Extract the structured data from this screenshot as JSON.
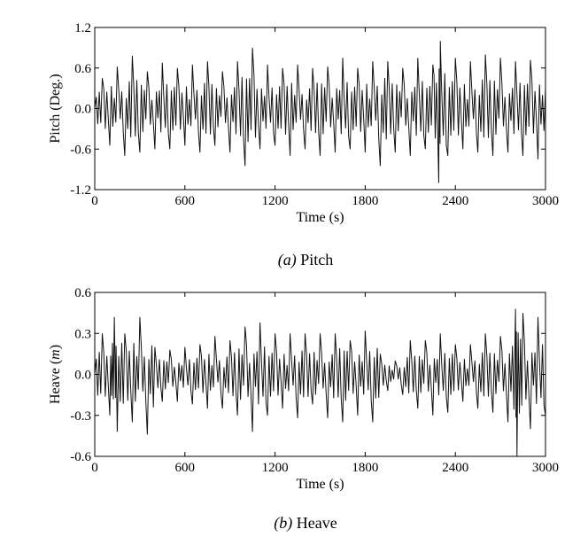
{
  "chart_data": [
    {
      "type": "line",
      "caption_prefix": "(a)",
      "caption_text": "Pitch",
      "xlabel": "Time (s)",
      "ylabel": "Pitch (Deg.)",
      "xlim": [
        0,
        3000
      ],
      "ylim": [
        -1.2,
        1.2
      ],
      "xticks": [
        0,
        600,
        1200,
        1800,
        2400,
        3000
      ],
      "xtick_labels": [
        "0",
        "600",
        "1200",
        "1800",
        "2400",
        "3000"
      ],
      "yticks": [
        1.2,
        0.6,
        0.0,
        -0.6,
        -1.2
      ],
      "ytick_labels": [
        "1.2",
        "0.6",
        "0.0",
        "-0.6",
        "-1.2"
      ],
      "grid": false,
      "series": [
        {
          "x": [
            0,
            50,
            100,
            150,
            200,
            250,
            300,
            350,
            400,
            450,
            500,
            550,
            600,
            650,
            700,
            750,
            800,
            850,
            900,
            950,
            1000,
            1050,
            1100,
            1150,
            1200,
            1250,
            1300,
            1350,
            1400,
            1450,
            1500,
            1550,
            1600,
            1650,
            1700,
            1750,
            1800,
            1850,
            1900,
            1950,
            2000,
            2050,
            2100,
            2150,
            2200,
            2250,
            2290,
            2300,
            2350,
            2400,
            2450,
            2500,
            2550,
            2600,
            2650,
            2700,
            2750,
            2800,
            2850,
            2900,
            2950,
            3000
          ],
          "values": [
            0.0,
            0.45,
            -0.55,
            0.62,
            -0.7,
            0.78,
            -0.65,
            0.55,
            -0.6,
            0.68,
            -0.6,
            0.6,
            -0.55,
            0.65,
            -0.65,
            0.7,
            -0.55,
            0.55,
            -0.65,
            0.7,
            -0.85,
            0.9,
            -0.6,
            0.65,
            -0.55,
            0.6,
            -0.7,
            0.65,
            -0.6,
            0.6,
            -0.7,
            0.62,
            -0.65,
            0.75,
            -0.6,
            0.6,
            -0.65,
            0.7,
            -0.85,
            0.7,
            -0.65,
            0.6,
            -0.7,
            0.75,
            -0.6,
            0.65,
            -1.1,
            1.0,
            -0.7,
            0.75,
            -0.6,
            0.7,
            -0.65,
            0.8,
            -0.7,
            0.75,
            -0.65,
            0.7,
            -0.7,
            0.72,
            -0.75,
            0.3
          ]
        }
      ]
    },
    {
      "type": "line",
      "caption_prefix": "(b)",
      "caption_text": "Heave",
      "xlabel": "Time (s)",
      "ylabel": "Heave (m)",
      "xlim": [
        0,
        3000
      ],
      "ylim": [
        -0.6,
        0.6
      ],
      "xticks": [
        0,
        600,
        1200,
        1800,
        2400,
        3000
      ],
      "xtick_labels": [
        "0",
        "600",
        "1200",
        "1800",
        "2400",
        "3000"
      ],
      "yticks": [
        0.6,
        0.3,
        0.0,
        -0.3,
        -0.6
      ],
      "ytick_labels": [
        "0.6",
        "0.3",
        "0.0",
        "-0.3",
        "-0.6"
      ],
      "grid": false,
      "series": [
        {
          "x": [
            0,
            50,
            100,
            130,
            150,
            200,
            250,
            300,
            350,
            400,
            450,
            500,
            550,
            600,
            650,
            700,
            750,
            800,
            850,
            900,
            950,
            1000,
            1050,
            1100,
            1150,
            1200,
            1250,
            1300,
            1350,
            1400,
            1450,
            1500,
            1550,
            1600,
            1650,
            1700,
            1750,
            1800,
            1850,
            1900,
            1950,
            2000,
            2050,
            2100,
            2150,
            2200,
            2250,
            2300,
            2350,
            2400,
            2450,
            2500,
            2550,
            2600,
            2650,
            2700,
            2750,
            2800,
            2810,
            2850,
            2900,
            2950,
            3000
          ],
          "values": [
            0.0,
            0.3,
            -0.3,
            0.42,
            -0.42,
            0.3,
            -0.35,
            0.42,
            -0.44,
            0.2,
            -0.2,
            0.18,
            -0.2,
            0.2,
            -0.22,
            0.22,
            -0.25,
            0.28,
            -0.25,
            0.25,
            -0.3,
            0.35,
            -0.42,
            0.38,
            -0.3,
            0.3,
            -0.25,
            0.3,
            -0.32,
            0.3,
            -0.22,
            0.3,
            -0.32,
            0.3,
            -0.35,
            0.25,
            -0.3,
            0.32,
            -0.35,
            0.15,
            -0.12,
            0.1,
            -0.15,
            0.25,
            -0.25,
            0.25,
            -0.3,
            0.3,
            -0.28,
            0.22,
            -0.2,
            0.22,
            -0.25,
            0.3,
            -0.28,
            0.28,
            -0.35,
            0.48,
            -0.6,
            0.45,
            -0.4,
            0.42,
            -0.3
          ]
        }
      ]
    }
  ]
}
